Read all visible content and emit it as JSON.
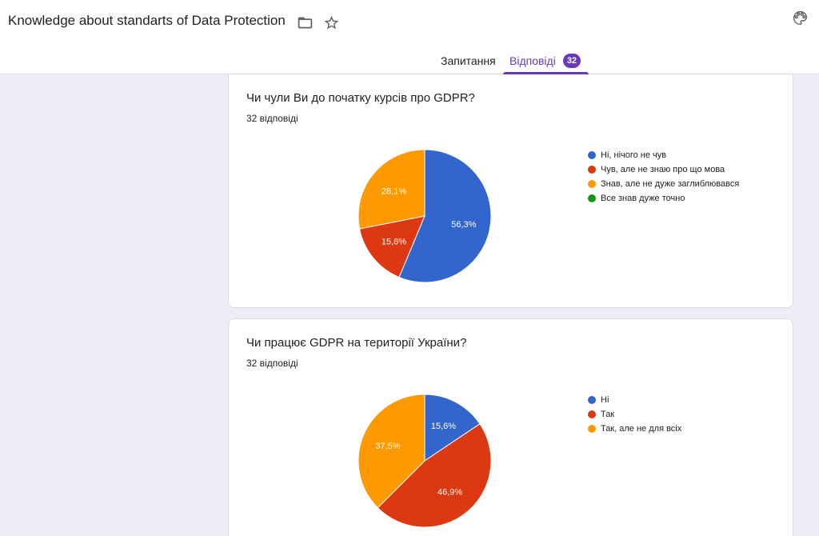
{
  "form": {
    "title": "Knowledge about standarts of Data Protection",
    "icons": {
      "folder": "folder-icon",
      "star": "star-icon",
      "palette": "palette-icon"
    }
  },
  "tabs": {
    "questions_label": "Запитання",
    "responses_label": "Відповіді",
    "responses_count": "32"
  },
  "colors": {
    "accent": "#673ab7",
    "blue": "#3366cc",
    "red": "#dc3912",
    "orange": "#ff9900",
    "green": "#109618"
  },
  "questions": [
    {
      "title": "Чи чули Ви до початку курсів про GDPR?",
      "count_label": "32 відповіді",
      "chart_data": {
        "type": "pie",
        "categories": [
          "Ні, нічого не чув",
          "Чув, але не знаю про що мова",
          "Знав, але не дуже заглиблювався",
          "Все знав дуже точно"
        ],
        "values": [
          56.3,
          15.6,
          28.1,
          0
        ],
        "labels": [
          "56,3%",
          "15,6%",
          "28,1%",
          ""
        ],
        "colors": [
          "#3366cc",
          "#dc3912",
          "#ff9900",
          "#109618"
        ],
        "legend": "right"
      }
    },
    {
      "title": "Чи працює GDPR на території України?",
      "count_label": "32 відповіді",
      "chart_data": {
        "type": "pie",
        "categories": [
          "Ні",
          "Так",
          "Так, але не для всіх"
        ],
        "values": [
          15.6,
          46.9,
          37.5
        ],
        "labels": [
          "15,6%",
          "46,9%",
          "37,5%"
        ],
        "colors": [
          "#3366cc",
          "#dc3912",
          "#ff9900"
        ],
        "legend": "right"
      }
    }
  ]
}
